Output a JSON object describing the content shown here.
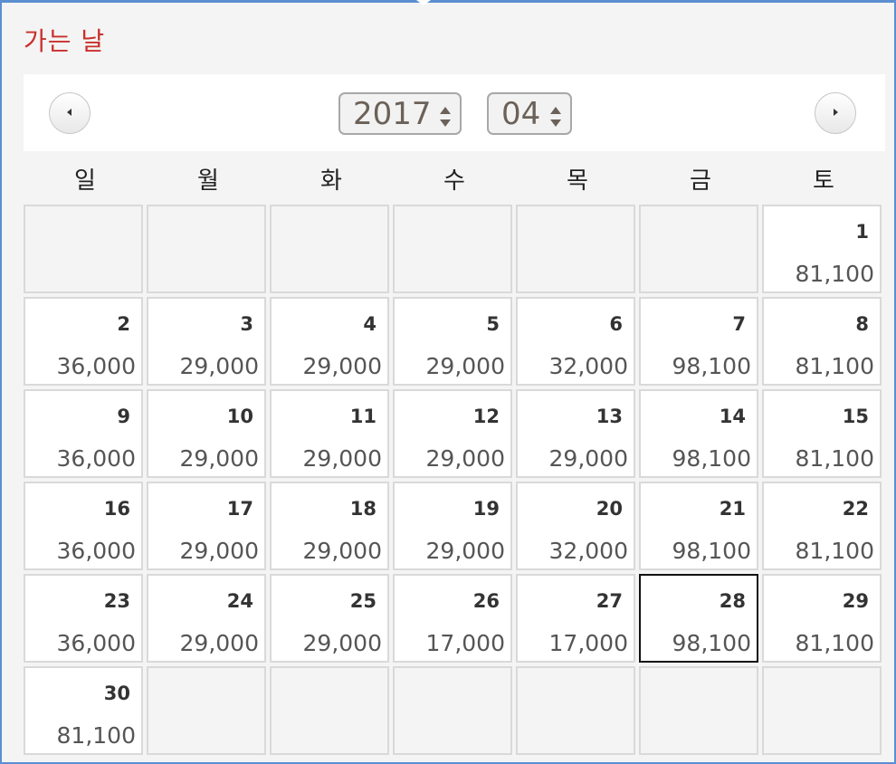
{
  "title": "가는 날",
  "nav": {
    "prev_icon": "triangle-left-icon",
    "next_icon": "triangle-right-icon",
    "year": "2017",
    "month": "04"
  },
  "weekdays": [
    "일",
    "월",
    "화",
    "수",
    "목",
    "금",
    "토"
  ],
  "colors": {
    "title": "#c9302c",
    "frame": "#5b8fd0",
    "selected_border": "#111111"
  },
  "weeks": [
    [
      null,
      null,
      null,
      null,
      null,
      null,
      {
        "day": "1",
        "price": "81,100"
      }
    ],
    [
      {
        "day": "2",
        "price": "36,000"
      },
      {
        "day": "3",
        "price": "29,000"
      },
      {
        "day": "4",
        "price": "29,000"
      },
      {
        "day": "5",
        "price": "29,000"
      },
      {
        "day": "6",
        "price": "32,000"
      },
      {
        "day": "7",
        "price": "98,100"
      },
      {
        "day": "8",
        "price": "81,100"
      }
    ],
    [
      {
        "day": "9",
        "price": "36,000"
      },
      {
        "day": "10",
        "price": "29,000"
      },
      {
        "day": "11",
        "price": "29,000"
      },
      {
        "day": "12",
        "price": "29,000"
      },
      {
        "day": "13",
        "price": "29,000"
      },
      {
        "day": "14",
        "price": "98,100"
      },
      {
        "day": "15",
        "price": "81,100"
      }
    ],
    [
      {
        "day": "16",
        "price": "36,000"
      },
      {
        "day": "17",
        "price": "29,000"
      },
      {
        "day": "18",
        "price": "29,000"
      },
      {
        "day": "19",
        "price": "29,000"
      },
      {
        "day": "20",
        "price": "32,000"
      },
      {
        "day": "21",
        "price": "98,100"
      },
      {
        "day": "22",
        "price": "81,100"
      }
    ],
    [
      {
        "day": "23",
        "price": "36,000"
      },
      {
        "day": "24",
        "price": "29,000"
      },
      {
        "day": "25",
        "price": "29,000"
      },
      {
        "day": "26",
        "price": "17,000"
      },
      {
        "day": "27",
        "price": "17,000"
      },
      {
        "day": "28",
        "price": "98,100",
        "selected": true
      },
      {
        "day": "29",
        "price": "81,100"
      }
    ],
    [
      {
        "day": "30",
        "price": "81,100"
      },
      null,
      null,
      null,
      null,
      null,
      null
    ]
  ]
}
